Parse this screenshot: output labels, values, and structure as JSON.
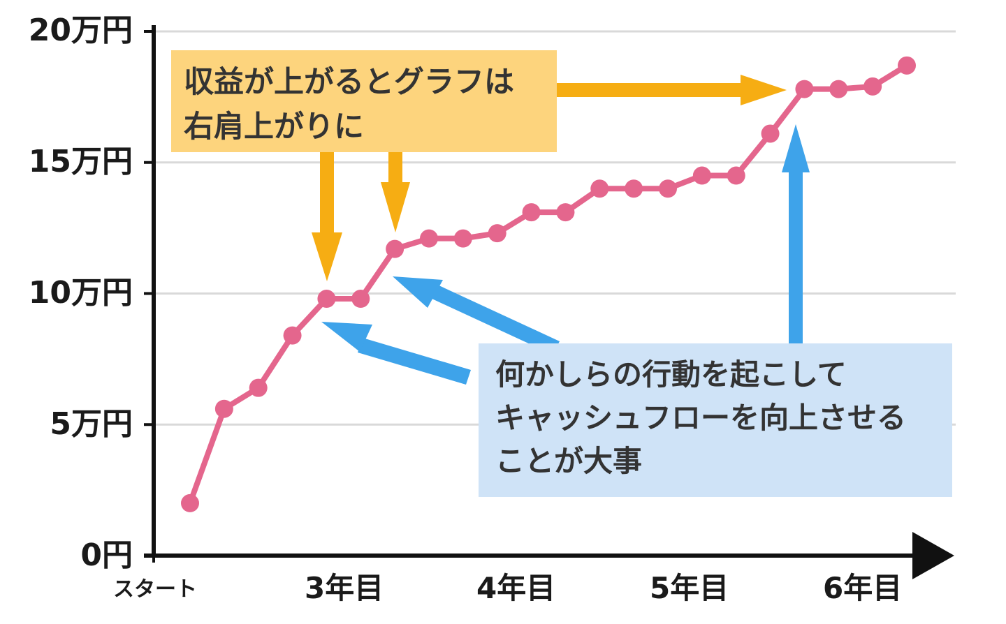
{
  "chart_data": {
    "type": "line",
    "y_tick_labels": [
      "0円",
      "5万円",
      "10万円",
      "15万円",
      "20万円"
    ],
    "ylim": [
      0,
      20
    ],
    "y_ticks": [
      0,
      5,
      10,
      15,
      20
    ],
    "x_tick_labels": [
      "スタート",
      "3年目",
      "4年目",
      "5年目",
      "6年目"
    ],
    "grid": true,
    "series": [
      {
        "color": "#e4668d",
        "values": [
          2.0,
          5.6,
          6.4,
          8.4,
          9.8,
          9.8,
          11.7,
          12.1,
          12.1,
          12.3,
          13.1,
          13.1,
          14.0,
          14.0,
          14.0,
          14.5,
          14.5,
          16.1,
          17.8,
          17.8,
          17.9,
          18.7
        ]
      }
    ],
    "annotations": [
      {
        "lines": [
          "収益が上がるとグラフは",
          "右肩上がりに"
        ],
        "color": "#fdd47d",
        "arrow_color": "#f6ad13"
      },
      {
        "lines": [
          "何かしらの行動を起こして",
          "キャッシュフローを向上させる",
          "ことが大事"
        ],
        "color": "#cfe3f7",
        "arrow_color": "#3ea3ea"
      }
    ]
  }
}
